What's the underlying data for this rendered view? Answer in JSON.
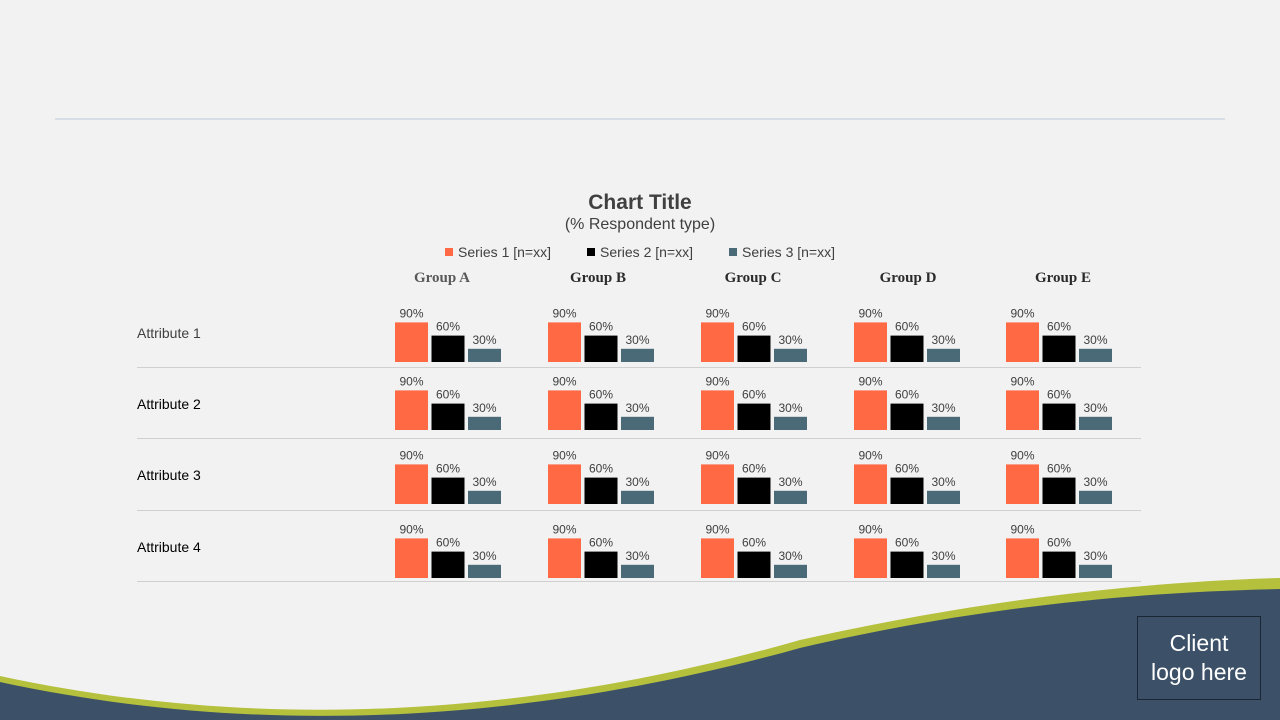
{
  "chart_data": {
    "type": "bar",
    "title": "Chart Title",
    "subtitle": "(% Respondent type)",
    "groups": [
      "Group A",
      "Group B",
      "Group C",
      "Group D",
      "Group E"
    ],
    "attributes": [
      "Attribute 1",
      "Attribute 2",
      "Attribute 3",
      "Attribute 4"
    ],
    "series": [
      {
        "name": "Series 1 [n=xx]",
        "color": "#ff6a45",
        "value": 90,
        "label": "90%"
      },
      {
        "name": "Series 2 [n=xx]",
        "color": "#000000",
        "value": 60,
        "label": "60%"
      },
      {
        "name": "Series 3 [n=xx]",
        "color": "#4a6a78",
        "value": 30,
        "label": "30%"
      }
    ],
    "ylim": [
      0,
      100
    ],
    "legend_position": "top"
  },
  "footer": {
    "logo_text_line1": "Client",
    "logo_text_line2": "logo here",
    "wave_dark_color": "#3c5168",
    "wave_accent_color": "#b5c03c"
  }
}
